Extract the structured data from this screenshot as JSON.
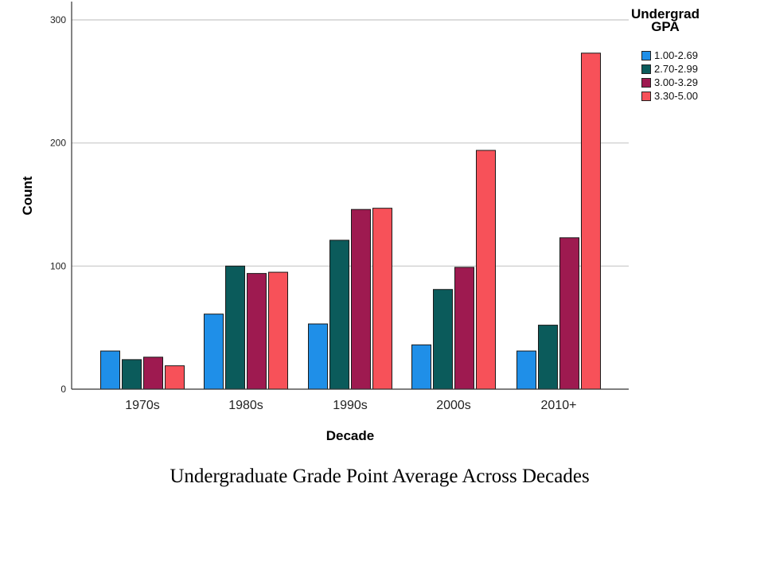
{
  "chart_data": {
    "type": "bar",
    "title": "",
    "xlabel": "Decade",
    "ylabel": "Count",
    "categories": [
      "1970s",
      "1980s",
      "1990s",
      "2000s",
      "2010+"
    ],
    "ylim": [
      0,
      320
    ],
    "yticks": [
      0,
      100,
      200,
      300
    ],
    "grid": true,
    "legend_position": "top-right",
    "legend_title": [
      "Undergrad",
      "GPA"
    ],
    "series": [
      {
        "name": "1.00-2.69",
        "color": "#1f8fe8",
        "values": [
          31,
          61,
          53,
          36,
          31
        ]
      },
      {
        "name": "2.70-2.99",
        "color": "#0b5b5b",
        "values": [
          24,
          100,
          121,
          81,
          52
        ]
      },
      {
        "name": "3.00-3.29",
        "color": "#9e1a50",
        "values": [
          26,
          94,
          146,
          99,
          123
        ]
      },
      {
        "name": "3.30-5.00",
        "color": "#f75159",
        "values": [
          19,
          95,
          147,
          194,
          273
        ]
      }
    ]
  },
  "caption": "Undergraduate Grade Point Average Across Decades"
}
